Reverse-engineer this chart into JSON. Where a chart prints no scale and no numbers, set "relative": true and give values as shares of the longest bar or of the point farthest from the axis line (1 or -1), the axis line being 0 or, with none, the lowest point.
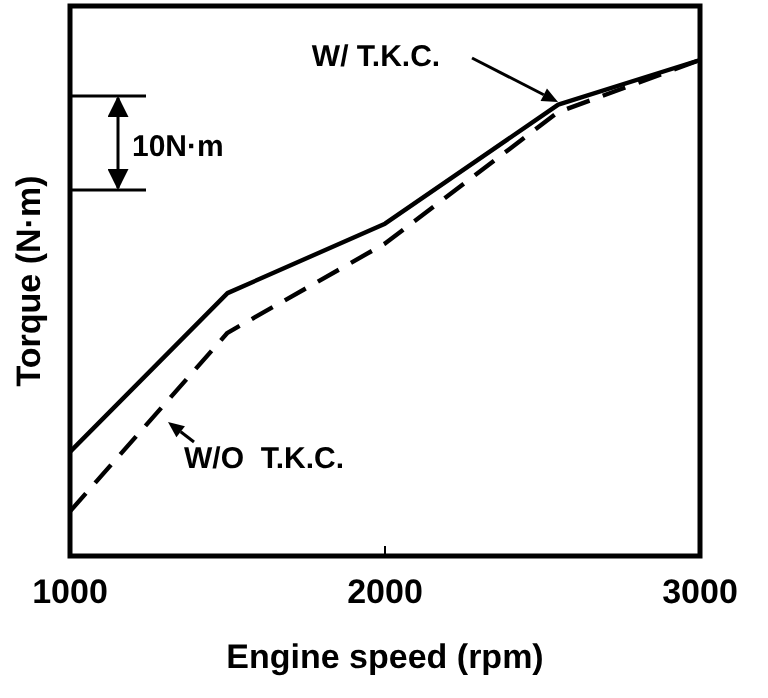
{
  "chart_data": {
    "type": "line",
    "relative": true,
    "xlabel": "Engine speed (rpm)",
    "ylabel": "Torque (N·m)",
    "x": [
      1000,
      1500,
      2000,
      2550,
      3000
    ],
    "xlim": [
      1000,
      3000
    ],
    "xticks": [
      1000,
      2000,
      3000
    ],
    "series": [
      {
        "name": "W/ T.K.C.",
        "color": "#000000",
        "line_style": "solid",
        "values": [
          0.21,
          0.53,
          0.67,
          0.91,
          1
        ]
      },
      {
        "name": "W/O  T.K.C.",
        "color": "#000000",
        "line_style": "dashed",
        "values": [
          0.09,
          0.45,
          0.63,
          0.895,
          1
        ]
      }
    ],
    "annotations": [
      "10N·m"
    ],
    "marker": "none"
  }
}
